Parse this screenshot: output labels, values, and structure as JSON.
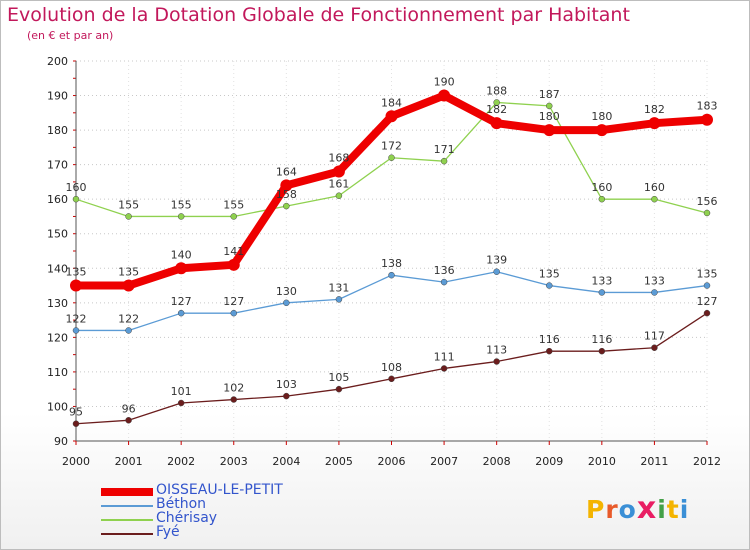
{
  "title": "Evolution de la Dotation Globale de Fonctionnement par Habitant",
  "subtitle": "(en € et par an)",
  "logo": {
    "letters": [
      "P",
      "r",
      "o",
      "x",
      "i",
      "t",
      "i"
    ],
    "colors": [
      "#f4b400",
      "#e85a2a",
      "#3a8fd6",
      "#e91e63",
      "#43a047",
      "#f4b400",
      "#3a8fd6"
    ]
  },
  "chart_data": {
    "type": "line",
    "x": [
      2000,
      2001,
      2002,
      2003,
      2004,
      2005,
      2006,
      2007,
      2008,
      2009,
      2010,
      2011,
      2012
    ],
    "ylim": [
      90,
      200
    ],
    "yticks": [
      90,
      100,
      110,
      120,
      130,
      140,
      150,
      160,
      170,
      180,
      190,
      200
    ],
    "grid": "horizontal dotted",
    "legend_position": "bottom-left",
    "series": [
      {
        "name": "OISSEAU-LE-PETIT",
        "color": "#ee0000",
        "values": [
          135,
          135,
          140,
          141,
          164,
          168,
          184,
          190,
          182,
          180,
          180,
          182,
          183
        ]
      },
      {
        "name": "Béthon",
        "color": "#5b9bd5",
        "values": [
          122,
          122,
          127,
          127,
          130,
          131,
          138,
          136,
          139,
          135,
          133,
          133,
          135
        ]
      },
      {
        "name": "Chérisay",
        "color": "#8fd14f",
        "values": [
          160,
          155,
          155,
          155,
          158,
          161,
          172,
          171,
          188,
          187,
          160,
          160,
          156
        ]
      },
      {
        "name": "Fyé",
        "color": "#6b1d1d",
        "values": [
          95,
          96,
          101,
          102,
          103,
          105,
          108,
          111,
          113,
          116,
          116,
          117,
          127
        ]
      }
    ]
  }
}
